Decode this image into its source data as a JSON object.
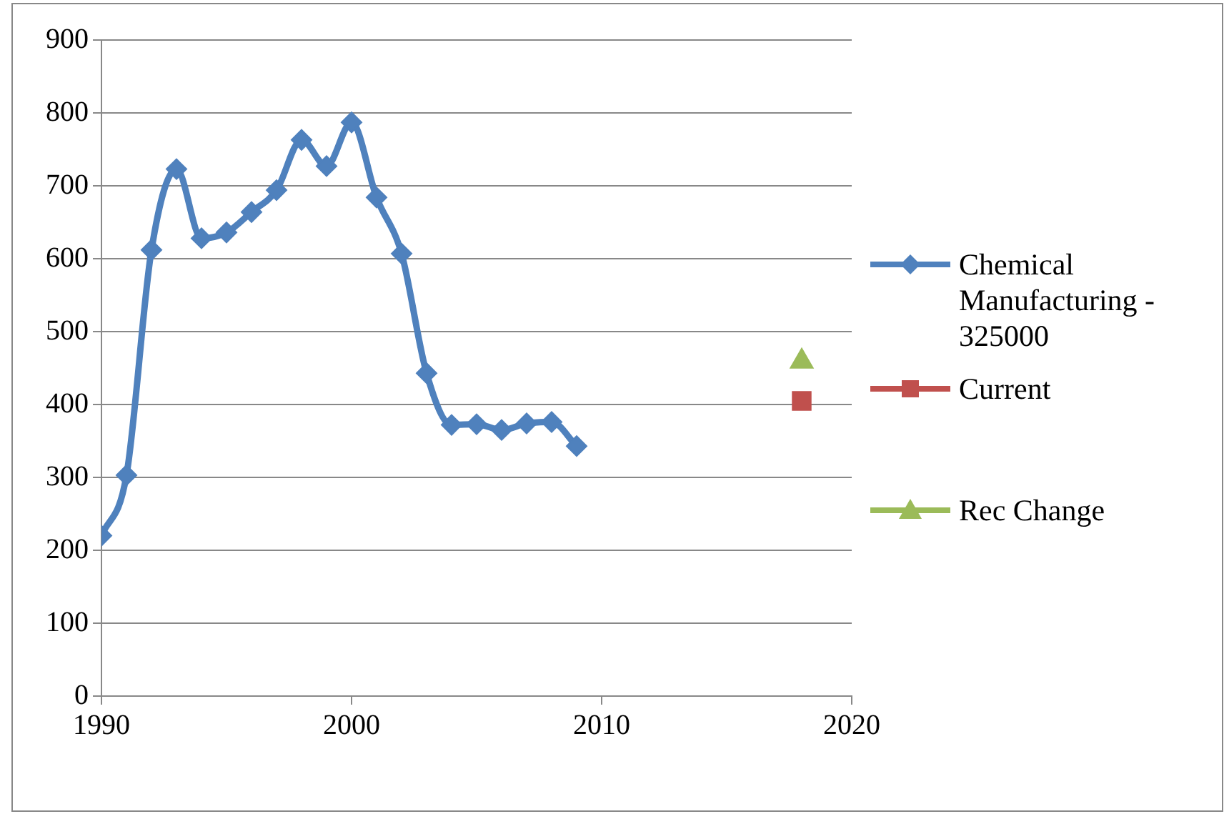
{
  "chart_data": {
    "type": "line",
    "x": [
      1990,
      1991,
      1992,
      1993,
      1994,
      1995,
      1996,
      1997,
      1998,
      1999,
      2000,
      2001,
      2002,
      2003,
      2004,
      2005,
      2006,
      2007,
      2008,
      2009
    ],
    "series": [
      {
        "name": "Chemical Manufacturing - 325000",
        "color": "#4f81bd",
        "marker": "diamond",
        "values": [
          220,
          303,
          612,
          723,
          628,
          636,
          664,
          694,
          763,
          727,
          787,
          684,
          607,
          443,
          372,
          373,
          365,
          374,
          376,
          343
        ]
      },
      {
        "name": "Current",
        "type": "scatter",
        "color": "#c0504d",
        "marker": "square",
        "x": [
          2018
        ],
        "values": [
          405
        ]
      },
      {
        "name": "Rec Change",
        "type": "scatter",
        "color": "#9bbb59",
        "marker": "triangle",
        "x": [
          2018
        ],
        "values": [
          459
        ]
      }
    ],
    "xlim": [
      1990,
      2020
    ],
    "xticks": [
      1990,
      2000,
      2010,
      2020
    ],
    "ylim": [
      0,
      900
    ],
    "yticks": [
      0,
      100,
      200,
      300,
      400,
      500,
      600,
      700,
      800,
      900
    ],
    "grid": "y",
    "legend": "right"
  }
}
